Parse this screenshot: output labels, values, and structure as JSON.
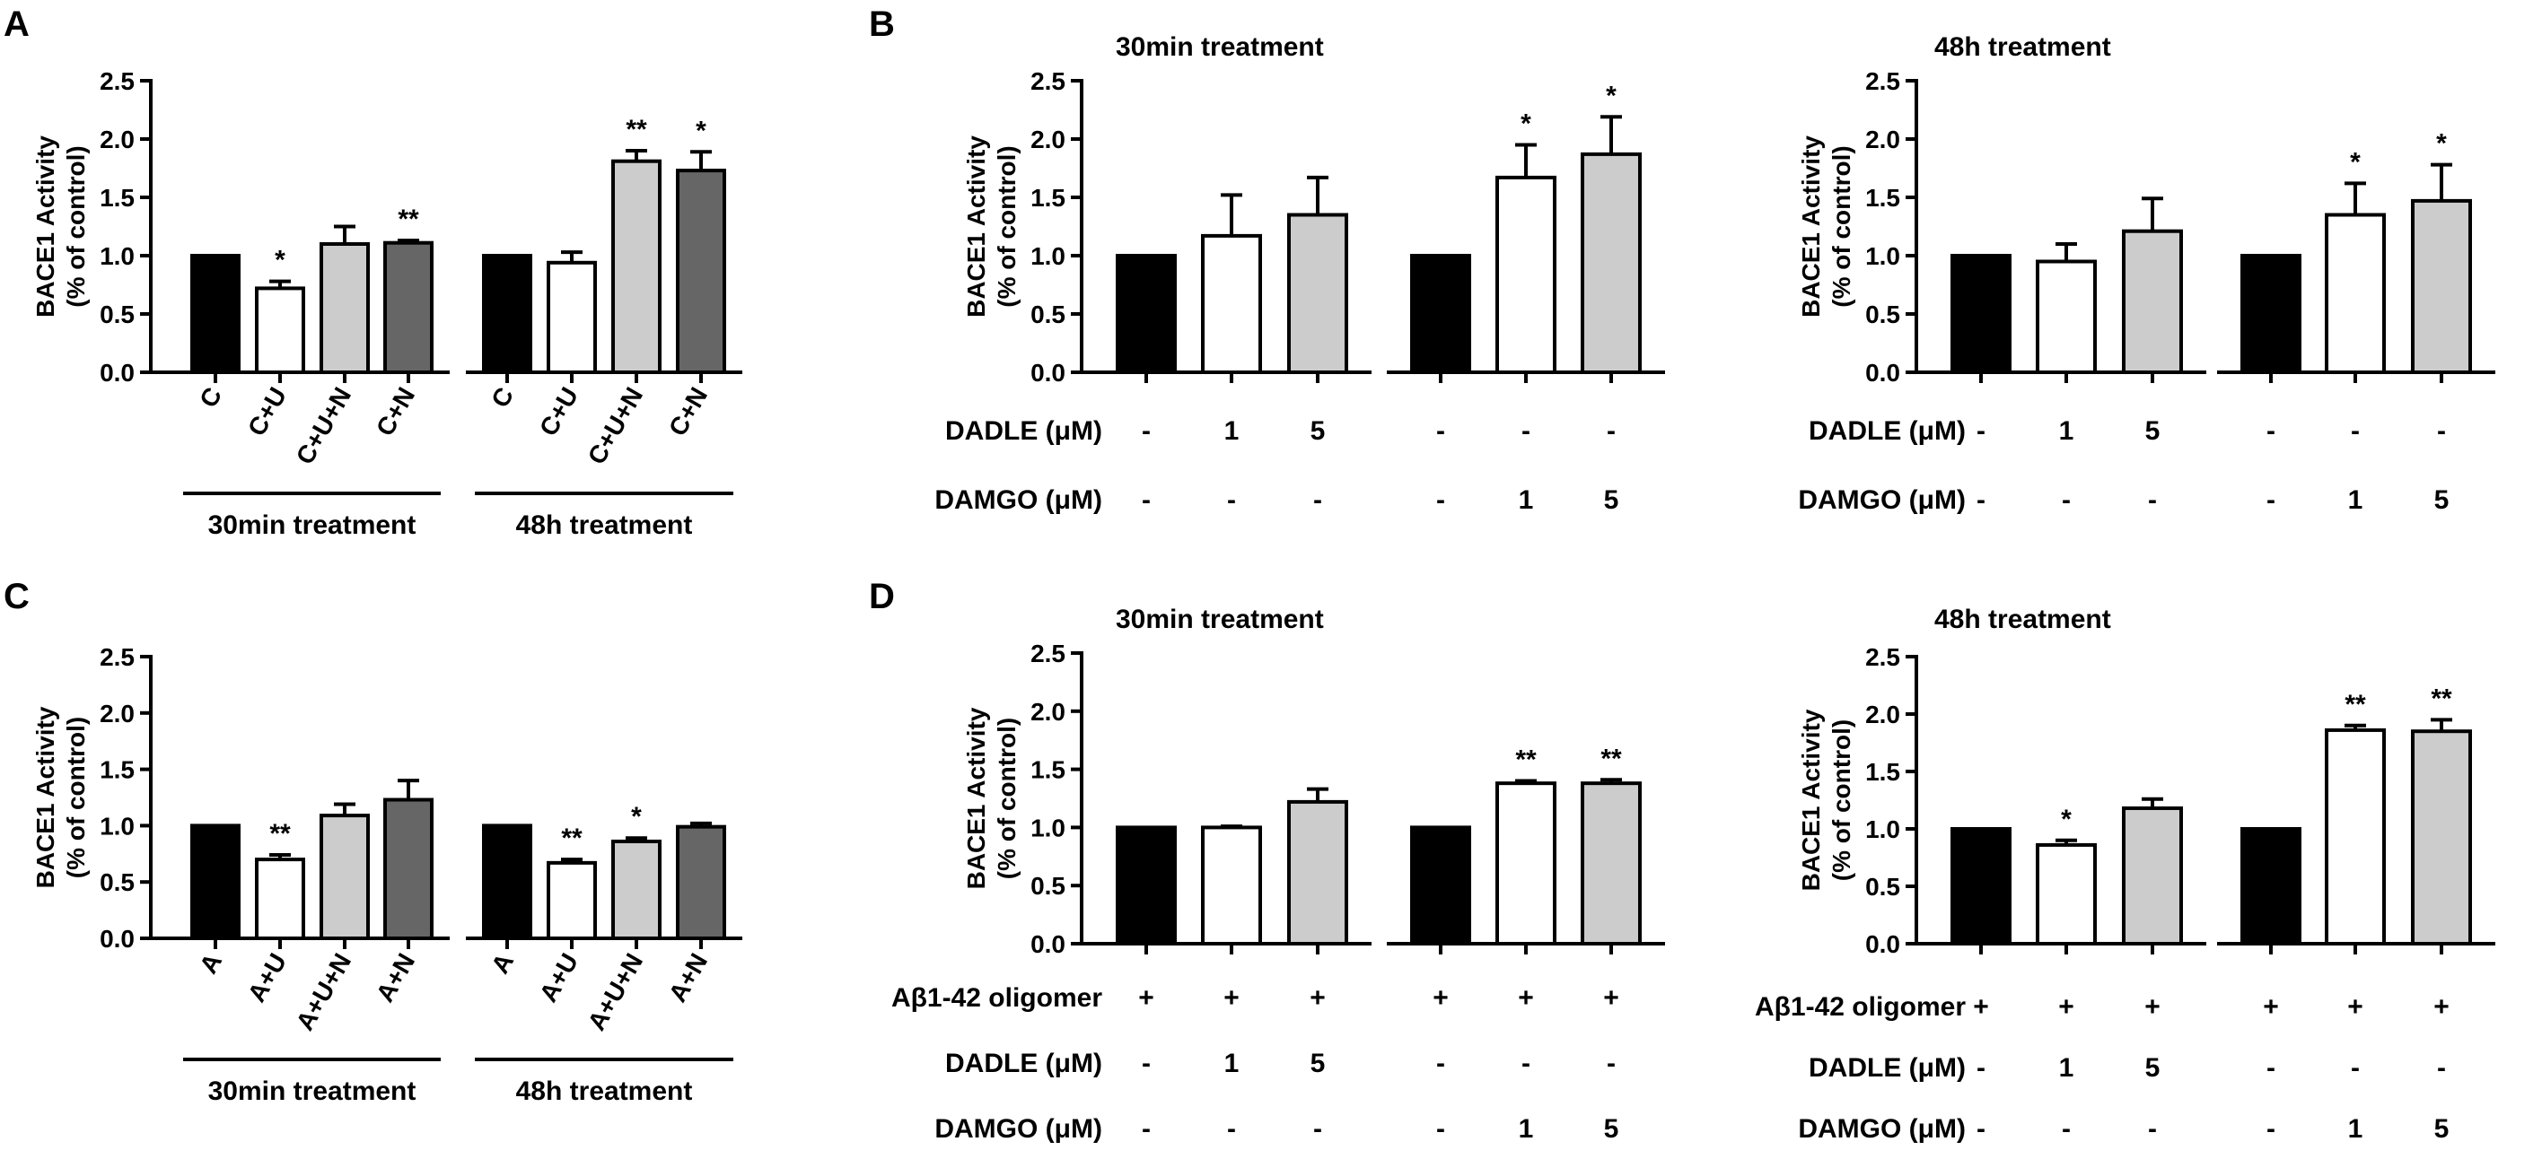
{
  "figure": {
    "panel_letters": [
      "A",
      "B",
      "C",
      "D"
    ]
  },
  "chart_data": [
    {
      "id": "A",
      "type": "bar",
      "title": "",
      "ylabel": [
        "BACE1 Activity",
        "(% of control)"
      ],
      "ylim": [
        0,
        2.5
      ],
      "yticks": [
        "0.0",
        "0.5",
        "1.0",
        "1.5",
        "2.0",
        "2.5"
      ],
      "groups": [
        {
          "label": "30min treatment",
          "bars": [
            {
              "label": "C",
              "value": 1.0,
              "err": 0.0,
              "fill": "#000000",
              "sig": ""
            },
            {
              "label": "C+U",
              "value": 0.72,
              "err": 0.06,
              "fill": "#ffffff",
              "sig": "*"
            },
            {
              "label": "C+U+N",
              "value": 1.1,
              "err": 0.15,
              "fill": "#cccccc",
              "sig": ""
            },
            {
              "label": "C+N",
              "value": 1.11,
              "err": 0.02,
              "fill": "#666666",
              "sig": "**"
            }
          ]
        },
        {
          "label": "48h treatment",
          "bars": [
            {
              "label": "C",
              "value": 1.0,
              "err": 0.0,
              "fill": "#000000",
              "sig": ""
            },
            {
              "label": "C+U",
              "value": 0.94,
              "err": 0.09,
              "fill": "#ffffff",
              "sig": ""
            },
            {
              "label": "C+U+N",
              "value": 1.81,
              "err": 0.09,
              "fill": "#cccccc",
              "sig": "**"
            },
            {
              "label": "C+N",
              "value": 1.73,
              "err": 0.16,
              "fill": "#666666",
              "sig": "*"
            }
          ]
        }
      ]
    },
    {
      "id": "B1",
      "type": "bar",
      "title": "30min treatment",
      "ylabel": [
        "BACE1 Activity",
        "(% of control)"
      ],
      "ylim": [
        0,
        2.5
      ],
      "yticks": [
        "0.0",
        "0.5",
        "1.0",
        "1.5",
        "2.0",
        "2.5"
      ],
      "bars": [
        {
          "value": 1.0,
          "err": 0.0,
          "fill": "#000000",
          "sig": ""
        },
        {
          "value": 1.17,
          "err": 0.35,
          "fill": "#ffffff",
          "sig": ""
        },
        {
          "value": 1.35,
          "err": 0.32,
          "fill": "#cccccc",
          "sig": ""
        },
        {
          "value": 1.0,
          "err": 0.0,
          "fill": "#000000",
          "sig": ""
        },
        {
          "value": 1.67,
          "err": 0.28,
          "fill": "#ffffff",
          "sig": "*"
        },
        {
          "value": 1.87,
          "err": 0.32,
          "fill": "#cccccc",
          "sig": "*"
        }
      ],
      "rows": [
        {
          "label": "DADLE (μM)",
          "values": [
            "-",
            "1",
            "5",
            "-",
            "-",
            "-"
          ]
        },
        {
          "label": "DAMGO (μM)",
          "values": [
            "-",
            "-",
            "-",
            "-",
            "1",
            "5"
          ]
        }
      ]
    },
    {
      "id": "B2",
      "type": "bar",
      "title": "48h treatment",
      "ylabel": [
        "BACE1 Activity",
        "(% of control)"
      ],
      "ylim": [
        0,
        2.5
      ],
      "yticks": [
        "0.0",
        "0.5",
        "1.0",
        "1.5",
        "2.0",
        "2.5"
      ],
      "bars": [
        {
          "value": 1.0,
          "err": 0.0,
          "fill": "#000000",
          "sig": ""
        },
        {
          "value": 0.95,
          "err": 0.15,
          "fill": "#ffffff",
          "sig": ""
        },
        {
          "value": 1.21,
          "err": 0.28,
          "fill": "#cccccc",
          "sig": ""
        },
        {
          "value": 1.0,
          "err": 0.0,
          "fill": "#000000",
          "sig": ""
        },
        {
          "value": 1.35,
          "err": 0.27,
          "fill": "#ffffff",
          "sig": "*"
        },
        {
          "value": 1.47,
          "err": 0.31,
          "fill": "#cccccc",
          "sig": "*"
        }
      ],
      "rows": [
        {
          "label": "DADLE (μM)",
          "values": [
            "-",
            "1",
            "5",
            "-",
            "-",
            "-"
          ]
        },
        {
          "label": "DAMGO (μM)",
          "values": [
            "-",
            "-",
            "-",
            "-",
            "1",
            "5"
          ]
        }
      ]
    },
    {
      "id": "C",
      "type": "bar",
      "title": "",
      "ylabel": [
        "BACE1 Activity",
        "(% of control)"
      ],
      "ylim": [
        0,
        2.5
      ],
      "yticks": [
        "0.0",
        "0.5",
        "1.0",
        "1.5",
        "2.0",
        "2.5"
      ],
      "groups": [
        {
          "label": "30min treatment",
          "bars": [
            {
              "label": "A",
              "value": 1.0,
              "err": 0.0,
              "fill": "#000000",
              "sig": ""
            },
            {
              "label": "A+U",
              "value": 0.7,
              "err": 0.04,
              "fill": "#ffffff",
              "sig": "**"
            },
            {
              "label": "A+U+N",
              "value": 1.09,
              "err": 0.1,
              "fill": "#cccccc",
              "sig": ""
            },
            {
              "label": "A+N",
              "value": 1.23,
              "err": 0.17,
              "fill": "#666666",
              "sig": ""
            }
          ]
        },
        {
          "label": "48h treatment",
          "bars": [
            {
              "label": "A",
              "value": 1.0,
              "err": 0.0,
              "fill": "#000000",
              "sig": ""
            },
            {
              "label": "A+U",
              "value": 0.67,
              "err": 0.03,
              "fill": "#ffffff",
              "sig": "**"
            },
            {
              "label": "A+U+N",
              "value": 0.86,
              "err": 0.03,
              "fill": "#cccccc",
              "sig": "*"
            },
            {
              "label": "A+N",
              "value": 0.99,
              "err": 0.03,
              "fill": "#666666",
              "sig": ""
            }
          ]
        }
      ]
    },
    {
      "id": "D1",
      "type": "bar",
      "title": "30min treatment",
      "ylabel": [
        "BACE1 Activity",
        "(% of control)"
      ],
      "ylim": [
        0,
        2.5
      ],
      "yticks": [
        "0.0",
        "0.5",
        "1.0",
        "1.5",
        "2.0",
        "2.5"
      ],
      "bars": [
        {
          "value": 1.0,
          "err": 0.0,
          "fill": "#000000",
          "sig": ""
        },
        {
          "value": 1.0,
          "err": 0.01,
          "fill": "#ffffff",
          "sig": ""
        },
        {
          "value": 1.22,
          "err": 0.11,
          "fill": "#cccccc",
          "sig": ""
        },
        {
          "value": 1.0,
          "err": 0.0,
          "fill": "#000000",
          "sig": ""
        },
        {
          "value": 1.38,
          "err": 0.02,
          "fill": "#ffffff",
          "sig": "**"
        },
        {
          "value": 1.38,
          "err": 0.03,
          "fill": "#cccccc",
          "sig": "**"
        }
      ],
      "rows": [
        {
          "label": "Aβ1-42 oligomer",
          "values": [
            "+",
            "+",
            "+",
            "+",
            "+",
            "+"
          ]
        },
        {
          "label": "DADLE (μM)",
          "values": [
            "-",
            "1",
            "5",
            "-",
            "-",
            "-"
          ]
        },
        {
          "label": "DAMGO (μM)",
          "values": [
            "-",
            "-",
            "-",
            "-",
            "1",
            "5"
          ]
        }
      ]
    },
    {
      "id": "D2",
      "type": "bar",
      "title": "48h treatment",
      "ylabel": [
        "BACE1 Activity",
        "(% of control)"
      ],
      "ylim": [
        0,
        2.5
      ],
      "yticks": [
        "0.0",
        "0.5",
        "1.0",
        "1.5",
        "2.0",
        "2.5"
      ],
      "bars": [
        {
          "value": 1.0,
          "err": 0.0,
          "fill": "#000000",
          "sig": ""
        },
        {
          "value": 0.86,
          "err": 0.04,
          "fill": "#ffffff",
          "sig": "*"
        },
        {
          "value": 1.18,
          "err": 0.08,
          "fill": "#cccccc",
          "sig": ""
        },
        {
          "value": 1.0,
          "err": 0.0,
          "fill": "#000000",
          "sig": ""
        },
        {
          "value": 1.86,
          "err": 0.04,
          "fill": "#ffffff",
          "sig": "**"
        },
        {
          "value": 1.85,
          "err": 0.1,
          "fill": "#cccccc",
          "sig": "**"
        }
      ],
      "rows": [
        {
          "label": "Aβ1-42 oligomer",
          "values": [
            "+",
            "+",
            "+",
            "+",
            "+",
            "+"
          ]
        },
        {
          "label": "DADLE (μM)",
          "values": [
            "-",
            "1",
            "5",
            "-",
            "-",
            "-"
          ]
        },
        {
          "label": "DAMGO (μM)",
          "values": [
            "-",
            "-",
            "-",
            "-",
            "1",
            "5"
          ]
        }
      ]
    }
  ]
}
